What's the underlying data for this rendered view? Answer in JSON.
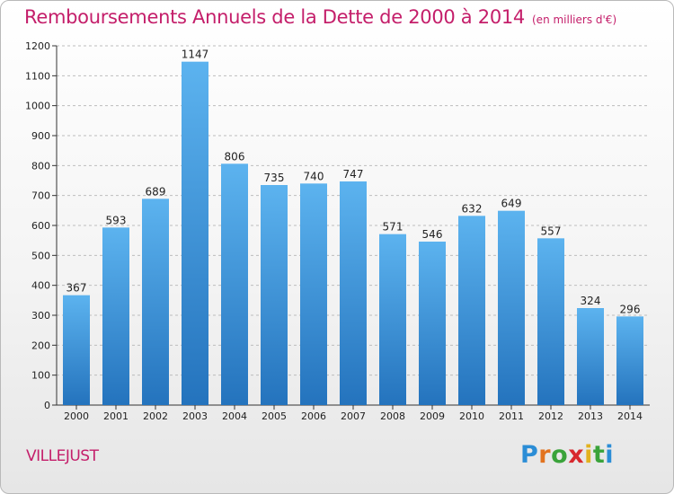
{
  "chart_data": {
    "type": "bar",
    "title": "Remboursements Annuels de la Dette de 2000 à 2014",
    "subtitle": "(en milliers d'€)",
    "categories": [
      "2000",
      "2001",
      "2002",
      "2003",
      "2004",
      "2005",
      "2006",
      "2007",
      "2008",
      "2009",
      "2010",
      "2011",
      "2012",
      "2013",
      "2014"
    ],
    "values": [
      367,
      593,
      689,
      1147,
      806,
      735,
      740,
      747,
      571,
      546,
      632,
      649,
      557,
      324,
      296
    ],
    "ylim": [
      0,
      1200
    ],
    "yticks": [
      0,
      100,
      200,
      300,
      400,
      500,
      600,
      700,
      800,
      900,
      1000,
      1100,
      1200
    ],
    "grid": true,
    "bar_color": "#3c8fd8"
  },
  "footer": {
    "city": "VILLEJUST",
    "logo": {
      "letters": [
        "P",
        "r",
        "o",
        "x",
        "i",
        "t",
        "i"
      ],
      "colors": [
        "#2b8dd6",
        "#e2731f",
        "#3aa33a",
        "#d8282e",
        "#e2b21f",
        "#3aa33a",
        "#2b8dd6"
      ]
    }
  }
}
